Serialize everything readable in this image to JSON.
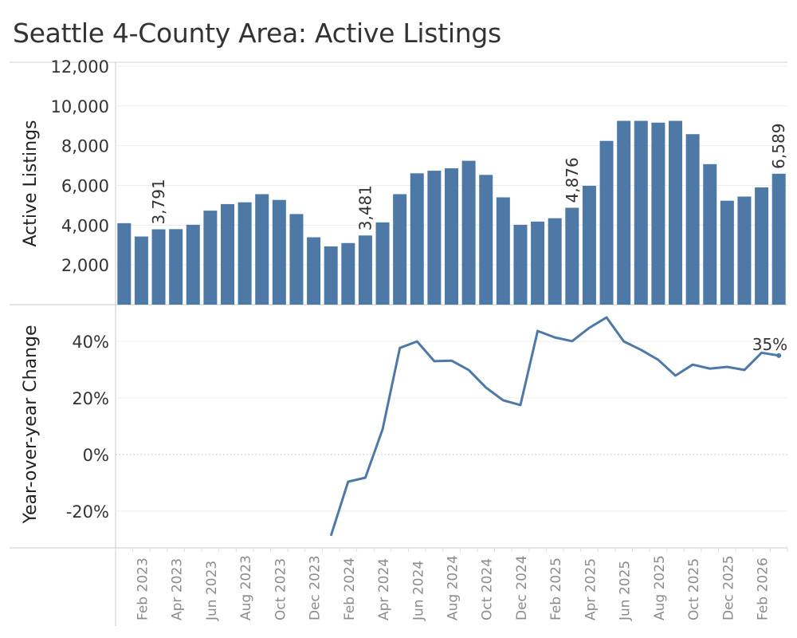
{
  "title": "Seattle 4-County Area: Active Listings",
  "colors": {
    "bar": "#4e79a7",
    "line": "#4e79a7",
    "axis_label": "#8c8c8c",
    "grid": "#ececec"
  },
  "chart_data": [
    {
      "type": "bar",
      "ylabel": "Active Listings",
      "ylim": [
        0,
        12000
      ],
      "yticks": [
        2000,
        4000,
        6000,
        8000,
        10000,
        12000
      ],
      "ytick_labels": [
        "2,000",
        "4,000",
        "6,000",
        "8,000",
        "10,000",
        "12,000"
      ],
      "grid": true,
      "categories": [
        "Jan 2023",
        "Feb 2023",
        "Mar 2023",
        "Apr 2023",
        "May 2023",
        "Jun 2023",
        "Jul 2023",
        "Aug 2023",
        "Sep 2023",
        "Oct 2023",
        "Nov 2023",
        "Dec 2023",
        "Jan 2024",
        "Feb 2024",
        "Mar 2024",
        "Apr 2024",
        "May 2024",
        "Jun 2024",
        "Jul 2024",
        "Aug 2024",
        "Sep 2024",
        "Oct 2024",
        "Nov 2024",
        "Dec 2024",
        "Jan 2025",
        "Feb 2025",
        "Mar 2025",
        "Apr 2025",
        "May 2025",
        "Jun 2025",
        "Jul 2025",
        "Aug 2025",
        "Sep 2025",
        "Oct 2025",
        "Nov 2025",
        "Dec 2025",
        "Jan 2026",
        "Feb 2026",
        "Mar 2026"
      ],
      "values": [
        4100,
        3430,
        3791,
        3800,
        4020,
        4730,
        5060,
        5150,
        5560,
        5270,
        4560,
        3390,
        2930,
        3100,
        3481,
        4140,
        5560,
        6610,
        6740,
        6860,
        7240,
        6530,
        5400,
        4020,
        4180,
        4350,
        4876,
        5980,
        8240,
        9250,
        9250,
        9160,
        9250,
        8580,
        7070,
        5230,
        5440,
        5900,
        6589
      ],
      "data_labels": [
        {
          "index": 2,
          "text": "3,791"
        },
        {
          "index": 14,
          "text": "3,481"
        },
        {
          "index": 26,
          "text": "4,876"
        },
        {
          "index": 38,
          "text": "6,589"
        }
      ]
    },
    {
      "type": "line",
      "ylabel": "Year-over-year Change",
      "ylim": [
        -33,
        53
      ],
      "yticks": [
        -20,
        0,
        20,
        40
      ],
      "ytick_labels": [
        "-20%",
        "0%",
        "20%",
        "40%"
      ],
      "zero_line": "dotted",
      "start_index": 12,
      "values": [
        -28.7,
        -9.6,
        -8.2,
        8.9,
        37.7,
        40.0,
        33.0,
        33.2,
        29.9,
        23.7,
        19.2,
        17.5,
        43.7,
        41.4,
        40.1,
        44.8,
        48.5,
        40.0,
        37.0,
        33.5,
        27.9,
        31.8,
        30.4,
        31.0,
        29.9,
        36.0,
        35.0
      ],
      "data_labels": [
        {
          "index": 38,
          "text": "35%"
        }
      ]
    }
  ],
  "x_axis": {
    "tick_labels": [
      "Feb 2023",
      "Apr 2023",
      "Jun 2023",
      "Aug 2023",
      "Oct 2023",
      "Dec 2023",
      "Feb 2024",
      "Apr 2024",
      "Jun 2024",
      "Aug 2024",
      "Oct 2024",
      "Dec 2024",
      "Feb 2025",
      "Apr 2025",
      "Jun 2025",
      "Aug 2025",
      "Oct 2025",
      "Dec 2025",
      "Feb 2026"
    ],
    "label_indices": [
      1,
      3,
      5,
      7,
      9,
      11,
      13,
      15,
      17,
      19,
      21,
      23,
      25,
      27,
      29,
      31,
      33,
      35,
      37
    ]
  }
}
